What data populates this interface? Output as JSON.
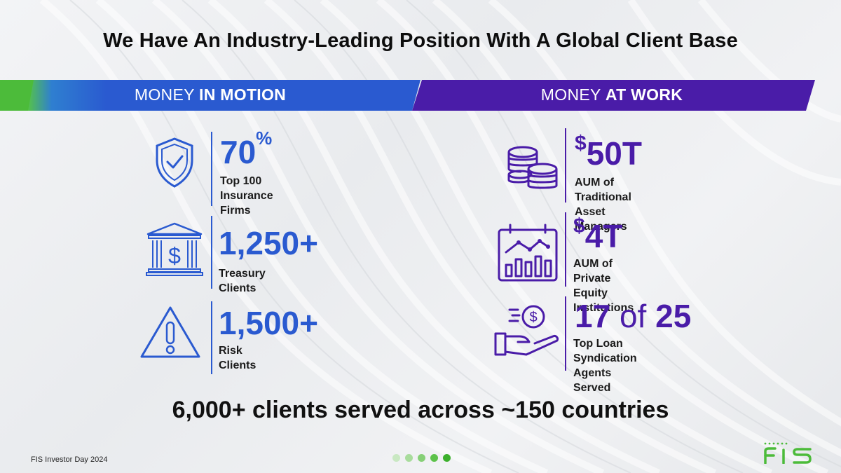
{
  "title": "We Have An Industry-Leading Position With A Global Client Base",
  "banners": {
    "left": {
      "prefix": "MONEY ",
      "emphasis": "IN MOTION"
    },
    "right": {
      "prefix": "MONEY ",
      "emphasis": "AT WORK"
    }
  },
  "money_in_motion": [
    {
      "value": "70",
      "suffix": "%",
      "label": "Top 100\nInsurance Firms",
      "icon": "shield-check-icon"
    },
    {
      "value": "1,250+",
      "label": "Treasury Clients",
      "icon": "bank-dollar-icon"
    },
    {
      "value": "1,500+",
      "label": "Risk Clients",
      "icon": "warning-triangle-icon"
    }
  ],
  "money_at_work": [
    {
      "prefix": "$",
      "value": "50T",
      "label": "AUM of Traditional\nAsset Managers",
      "icon": "coin-stacks-icon"
    },
    {
      "prefix": "$",
      "value": "4T",
      "label": "AUM of Private\nEquity Institutions",
      "icon": "growth-chart-icon"
    },
    {
      "value_a": "17",
      "connector": "of",
      "value_b": "25",
      "label": "Top Loan Syndication\nAgents Served",
      "icon": "hand-dollar-icon"
    }
  ],
  "summary": "6,000+ clients served across ~150 countries",
  "footer": "FIS Investor Day 2024",
  "logo_text": "FIS",
  "colors": {
    "blue": "#2a5ad0",
    "purple": "#4a1ca8",
    "green": "#4cbb3a"
  }
}
